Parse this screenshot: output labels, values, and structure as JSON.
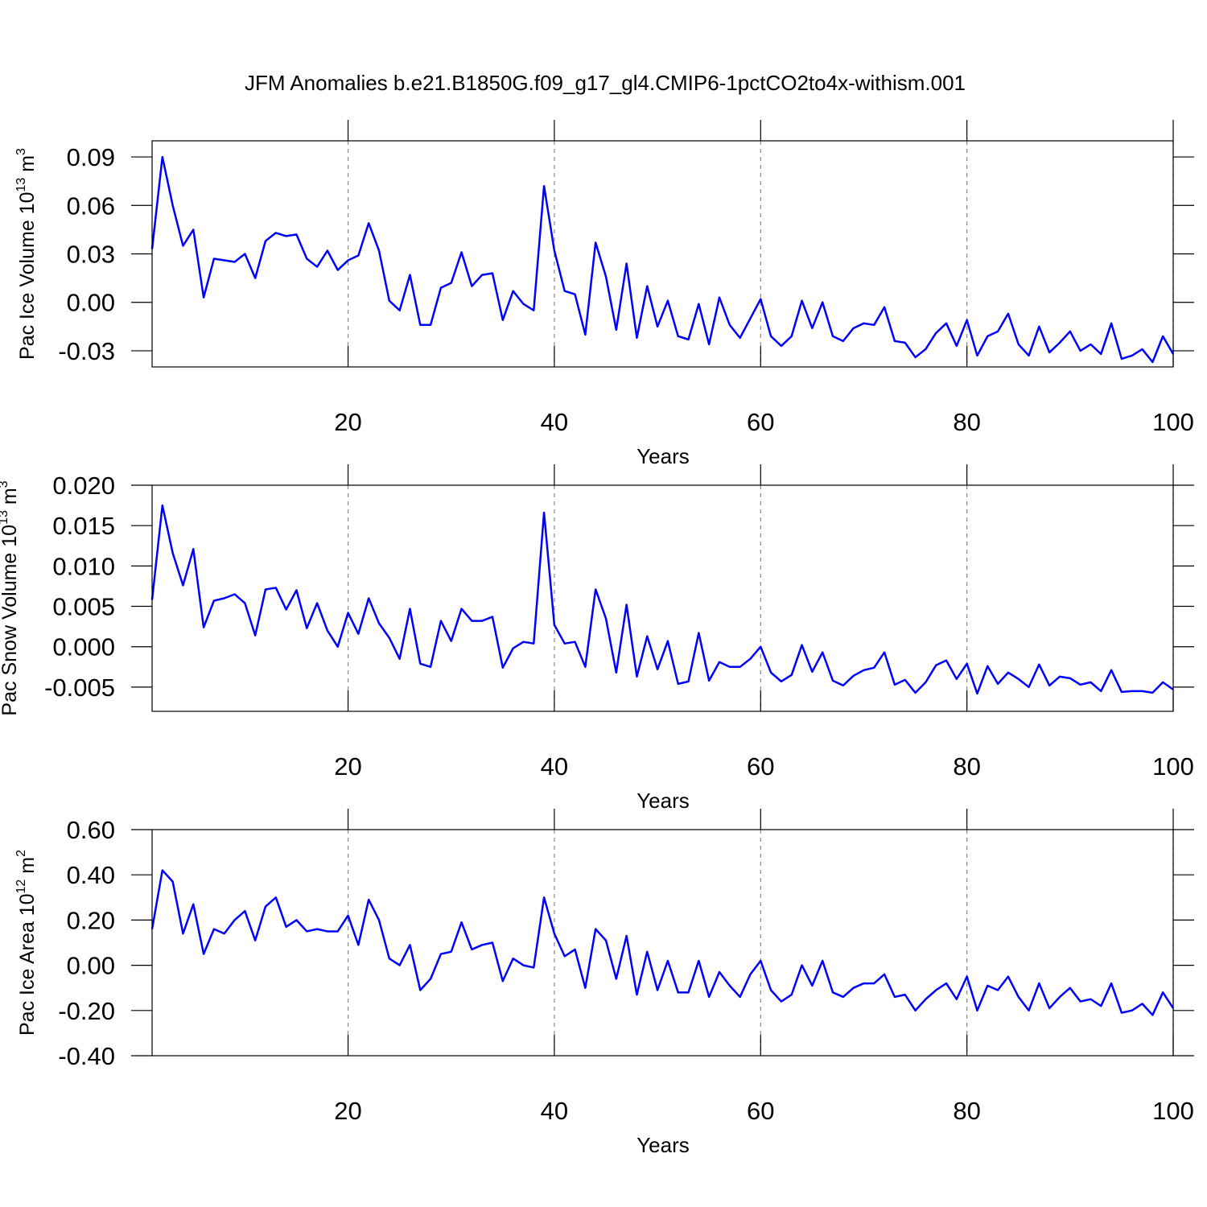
{
  "chart_data": [
    {
      "type": "line",
      "title": "JFM Anomalies b.e21.B1850G.f09_g17_gl4.CMIP6-1pctCO2to4x-withism.001",
      "ylabel": [
        "Pac Ice Volume 10",
        "13",
        " m",
        "3"
      ],
      "xlabel": "Years",
      "color": "#0000ff",
      "grid": "x",
      "xlim": [
        1,
        100
      ],
      "xticks": [
        20,
        40,
        60,
        80,
        100
      ],
      "ylim": [
        -0.04,
        0.1
      ],
      "yticks": [
        0.09,
        0.06,
        0.03,
        {
          "value": 0,
          "label": "0.00"
        },
        -0.03
      ],
      "x": [
        1,
        2,
        3,
        4,
        5,
        6,
        7,
        8,
        9,
        10,
        11,
        12,
        13,
        14,
        15,
        16,
        17,
        18,
        19,
        20,
        21,
        22,
        23,
        24,
        25,
        26,
        27,
        28,
        29,
        30,
        31,
        32,
        33,
        34,
        35,
        36,
        37,
        38,
        39,
        40,
        41,
        42,
        43,
        44,
        45,
        46,
        47,
        48,
        49,
        50,
        51,
        52,
        53,
        54,
        55,
        56,
        57,
        58,
        59,
        60,
        61,
        62,
        63,
        64,
        65,
        66,
        67,
        68,
        69,
        70,
        71,
        72,
        73,
        74,
        75,
        76,
        77,
        78,
        79,
        80,
        81,
        82,
        83,
        84,
        85,
        86,
        87,
        88,
        89,
        90,
        91,
        92,
        93,
        94,
        95,
        96,
        97,
        98,
        99,
        100
      ],
      "values": [
        0.033,
        0.09,
        0.06,
        0.035,
        0.045,
        0.003,
        0.027,
        0.026,
        0.025,
        0.03,
        0.015,
        0.038,
        0.043,
        0.041,
        0.042,
        0.027,
        0.022,
        0.032,
        0.02,
        0.026,
        0.029,
        0.049,
        0.032,
        0.001,
        -0.005,
        0.017,
        -0.014,
        -0.014,
        0.009,
        0.012,
        0.031,
        0.01,
        0.017,
        0.018,
        -0.011,
        0.007,
        -0.001,
        -0.005,
        0.072,
        0.032,
        0.007,
        0.005,
        -0.02,
        0.037,
        0.016,
        -0.017,
        0.024,
        -0.022,
        0.01,
        -0.015,
        0.001,
        -0.021,
        -0.023,
        -0.001,
        -0.026,
        0.003,
        -0.014,
        -0.022,
        -0.01,
        0.002,
        -0.021,
        -0.027,
        -0.021,
        0.001,
        -0.016,
        0.0,
        -0.021,
        -0.024,
        -0.016,
        -0.013,
        -0.014,
        -0.003,
        -0.024,
        -0.025,
        -0.034,
        -0.029,
        -0.019,
        -0.013,
        -0.027,
        -0.011,
        -0.033,
        -0.021,
        -0.018,
        -0.007,
        -0.026,
        -0.033,
        -0.015,
        -0.031,
        -0.025,
        -0.018,
        -0.03,
        -0.026,
        -0.032,
        -0.013,
        -0.035,
        -0.033,
        -0.029,
        -0.037,
        -0.021,
        -0.032
      ]
    },
    {
      "type": "line",
      "ylabel": [
        "Pac Snow Volume 10",
        "13",
        " m",
        "3"
      ],
      "xlabel": "Years",
      "color": "#0000ff",
      "grid": "x",
      "xlim": [
        1,
        100
      ],
      "xticks": [
        20,
        40,
        60,
        80,
        100
      ],
      "ylim": [
        -0.008,
        0.02
      ],
      "yticks": [
        {
          "value": 0.02,
          "label": "0.020"
        },
        0.015,
        {
          "value": 0.01,
          "label": "0.010"
        },
        0.005,
        {
          "value": 0,
          "label": "0.000"
        },
        -0.005
      ],
      "x": [
        1,
        2,
        3,
        4,
        5,
        6,
        7,
        8,
        9,
        10,
        11,
        12,
        13,
        14,
        15,
        16,
        17,
        18,
        19,
        20,
        21,
        22,
        23,
        24,
        25,
        26,
        27,
        28,
        29,
        30,
        31,
        32,
        33,
        34,
        35,
        36,
        37,
        38,
        39,
        40,
        41,
        42,
        43,
        44,
        45,
        46,
        47,
        48,
        49,
        50,
        51,
        52,
        53,
        54,
        55,
        56,
        57,
        58,
        59,
        60,
        61,
        62,
        63,
        64,
        65,
        66,
        67,
        68,
        69,
        70,
        71,
        72,
        73,
        74,
        75,
        76,
        77,
        78,
        79,
        80,
        81,
        82,
        83,
        84,
        85,
        86,
        87,
        88,
        89,
        90,
        91,
        92,
        93,
        94,
        95,
        96,
        97,
        98,
        99,
        100
      ],
      "values": [
        0.0058,
        0.0175,
        0.0116,
        0.0076,
        0.0121,
        0.0024,
        0.0057,
        0.006,
        0.0065,
        0.0054,
        0.0014,
        0.0071,
        0.0073,
        0.0046,
        0.007,
        0.0023,
        0.0054,
        0.002,
        0.0,
        0.0042,
        0.0016,
        0.006,
        0.0029,
        0.0011,
        -0.0015,
        0.0047,
        -0.0021,
        -0.0025,
        0.0032,
        0.0007,
        0.0047,
        0.0032,
        0.0032,
        0.0037,
        -0.0026,
        -0.0002,
        0.0006,
        0.0004,
        0.0166,
        0.0027,
        0.0004,
        0.0006,
        -0.0025,
        0.0071,
        0.0035,
        -0.0032,
        0.0052,
        -0.0037,
        0.0013,
        -0.0028,
        0.0007,
        -0.0046,
        -0.0043,
        0.0017,
        -0.0042,
        -0.0019,
        -0.0025,
        -0.0025,
        -0.0015,
        0.0,
        -0.0032,
        -0.0043,
        -0.0035,
        0.0002,
        -0.0031,
        -0.0007,
        -0.0042,
        -0.0048,
        -0.0036,
        -0.0029,
        -0.0026,
        -0.0007,
        -0.0047,
        -0.0041,
        -0.0057,
        -0.0044,
        -0.0023,
        -0.0017,
        -0.004,
        -0.0021,
        -0.0058,
        -0.0024,
        -0.0046,
        -0.0032,
        -0.004,
        -0.005,
        -0.0022,
        -0.0048,
        -0.0037,
        -0.0039,
        -0.0047,
        -0.0044,
        -0.0055,
        -0.0029,
        -0.0056,
        -0.0055,
        -0.0055,
        -0.0057,
        -0.0044,
        -0.0053
      ]
    },
    {
      "type": "line",
      "ylabel": [
        "Pac Ice Area 10",
        "12",
        " m",
        "2"
      ],
      "xlabel": "Years",
      "color": "#0000ff",
      "grid": "x",
      "xlim": [
        1,
        100
      ],
      "xticks": [
        20,
        40,
        60,
        80,
        100
      ],
      "ylim": [
        -0.4,
        0.6
      ],
      "yticks": [
        {
          "value": 0.6,
          "label": "0.60"
        },
        {
          "value": 0.4,
          "label": "0.40"
        },
        {
          "value": 0.2,
          "label": "0.20"
        },
        {
          "value": 0,
          "label": "0.00"
        },
        {
          "value": -0.2,
          "label": "-0.20"
        },
        {
          "value": -0.4,
          "label": "-0.40"
        }
      ],
      "x": [
        1,
        2,
        3,
        4,
        5,
        6,
        7,
        8,
        9,
        10,
        11,
        12,
        13,
        14,
        15,
        16,
        17,
        18,
        19,
        20,
        21,
        22,
        23,
        24,
        25,
        26,
        27,
        28,
        29,
        30,
        31,
        32,
        33,
        34,
        35,
        36,
        37,
        38,
        39,
        40,
        41,
        42,
        43,
        44,
        45,
        46,
        47,
        48,
        49,
        50,
        51,
        52,
        53,
        54,
        55,
        56,
        57,
        58,
        59,
        60,
        61,
        62,
        63,
        64,
        65,
        66,
        67,
        68,
        69,
        70,
        71,
        72,
        73,
        74,
        75,
        76,
        77,
        78,
        79,
        80,
        81,
        82,
        83,
        84,
        85,
        86,
        87,
        88,
        89,
        90,
        91,
        92,
        93,
        94,
        95,
        96,
        97,
        98,
        99,
        100
      ],
      "values": [
        0.16,
        0.42,
        0.37,
        0.14,
        0.27,
        0.05,
        0.16,
        0.14,
        0.2,
        0.24,
        0.11,
        0.26,
        0.3,
        0.17,
        0.2,
        0.15,
        0.16,
        0.15,
        0.15,
        0.22,
        0.09,
        0.29,
        0.2,
        0.03,
        0.0,
        0.09,
        -0.11,
        -0.06,
        0.05,
        0.06,
        0.19,
        0.07,
        0.09,
        0.1,
        -0.07,
        0.03,
        0.0,
        -0.01,
        0.3,
        0.14,
        0.04,
        0.07,
        -0.1,
        0.16,
        0.11,
        -0.06,
        0.13,
        -0.13,
        0.06,
        -0.11,
        0.02,
        -0.12,
        -0.12,
        0.02,
        -0.14,
        -0.03,
        -0.09,
        -0.14,
        -0.04,
        0.02,
        -0.11,
        -0.16,
        -0.13,
        0.0,
        -0.09,
        0.02,
        -0.12,
        -0.14,
        -0.1,
        -0.08,
        -0.08,
        -0.04,
        -0.14,
        -0.13,
        -0.2,
        -0.15,
        -0.11,
        -0.08,
        -0.15,
        -0.05,
        -0.2,
        -0.09,
        -0.11,
        -0.05,
        -0.14,
        -0.2,
        -0.08,
        -0.19,
        -0.14,
        -0.1,
        -0.16,
        -0.15,
        -0.18,
        -0.08,
        -0.21,
        -0.2,
        -0.17,
        -0.22,
        -0.12,
        -0.19
      ]
    }
  ]
}
